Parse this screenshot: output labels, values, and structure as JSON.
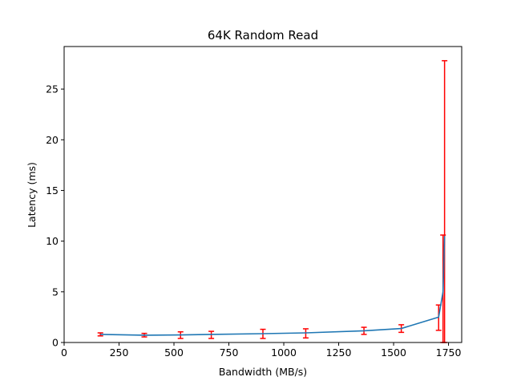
{
  "chart_data": {
    "type": "line",
    "title": "64K  Random Read",
    "xlabel": "Bandwidth (MB/s)",
    "ylabel": "Latency (ms)",
    "xlim": [
      0,
      1810
    ],
    "ylim": [
      0,
      29.2
    ],
    "xticks": [
      0,
      250,
      500,
      750,
      1000,
      1250,
      1500,
      1750
    ],
    "yticks": [
      0,
      5,
      10,
      15,
      20,
      25
    ],
    "grid": false,
    "series": [
      {
        "color": "#1f77b4",
        "x": [
          165,
          365,
          530,
          670,
          905,
          1100,
          1365,
          1535,
          1705,
          1725,
          1732
        ],
        "y": [
          0.8,
          0.72,
          0.75,
          0.8,
          0.87,
          0.95,
          1.15,
          1.38,
          2.5,
          5.0,
          10.5
        ],
        "errorbars": {
          "color": "#ff0000",
          "low": [
            0.65,
            0.55,
            0.4,
            0.4,
            0.4,
            0.45,
            0.8,
            1.0,
            1.2,
            0.0,
            0.0
          ],
          "high": [
            0.95,
            0.9,
            1.05,
            1.1,
            1.3,
            1.35,
            1.5,
            1.75,
            3.7,
            10.6,
            27.8
          ]
        }
      }
    ]
  }
}
